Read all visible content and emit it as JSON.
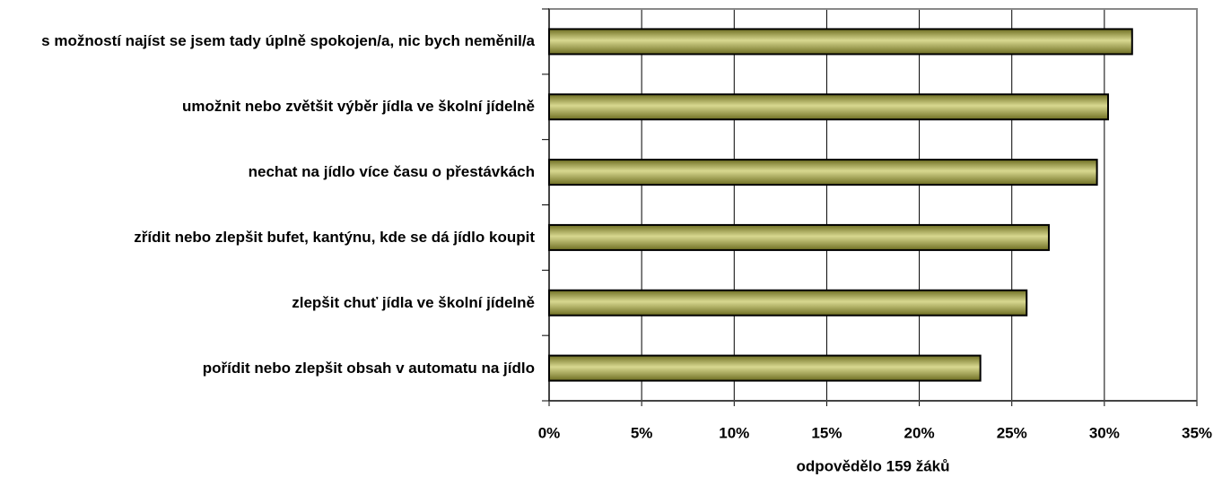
{
  "chart_data": {
    "type": "bar",
    "orientation": "horizontal",
    "categories": [
      "s možností najíst se jsem tady úplně spokojen/a, nic bych neměnil/a",
      "umožnit nebo zvětšit výběr jídla ve školní jídelně",
      "nechat na jídlo více času o přestávkách",
      "zřídit nebo zlepšit bufet, kantýnu, kde se dá jídlo koupit",
      "zlepšit chuť jídla ve školní jídelně",
      "pořídit nebo zlepšit obsah v automatu na jídlo"
    ],
    "values": [
      31.5,
      30.2,
      29.6,
      27.0,
      25.8,
      23.3
    ],
    "color": "#999933",
    "xlabel": "odpovědělo 159 žáků",
    "xlim": [
      0,
      35
    ],
    "xticks": [
      {
        "value": 0,
        "label": "0%"
      },
      {
        "value": 5,
        "label": "5%"
      },
      {
        "value": 10,
        "label": "10%"
      },
      {
        "value": 15,
        "label": "15%"
      },
      {
        "value": 20,
        "label": "20%"
      },
      {
        "value": 25,
        "label": "25%"
      },
      {
        "value": 30,
        "label": "30%"
      },
      {
        "value": 35,
        "label": "35%"
      }
    ],
    "grid": true
  }
}
